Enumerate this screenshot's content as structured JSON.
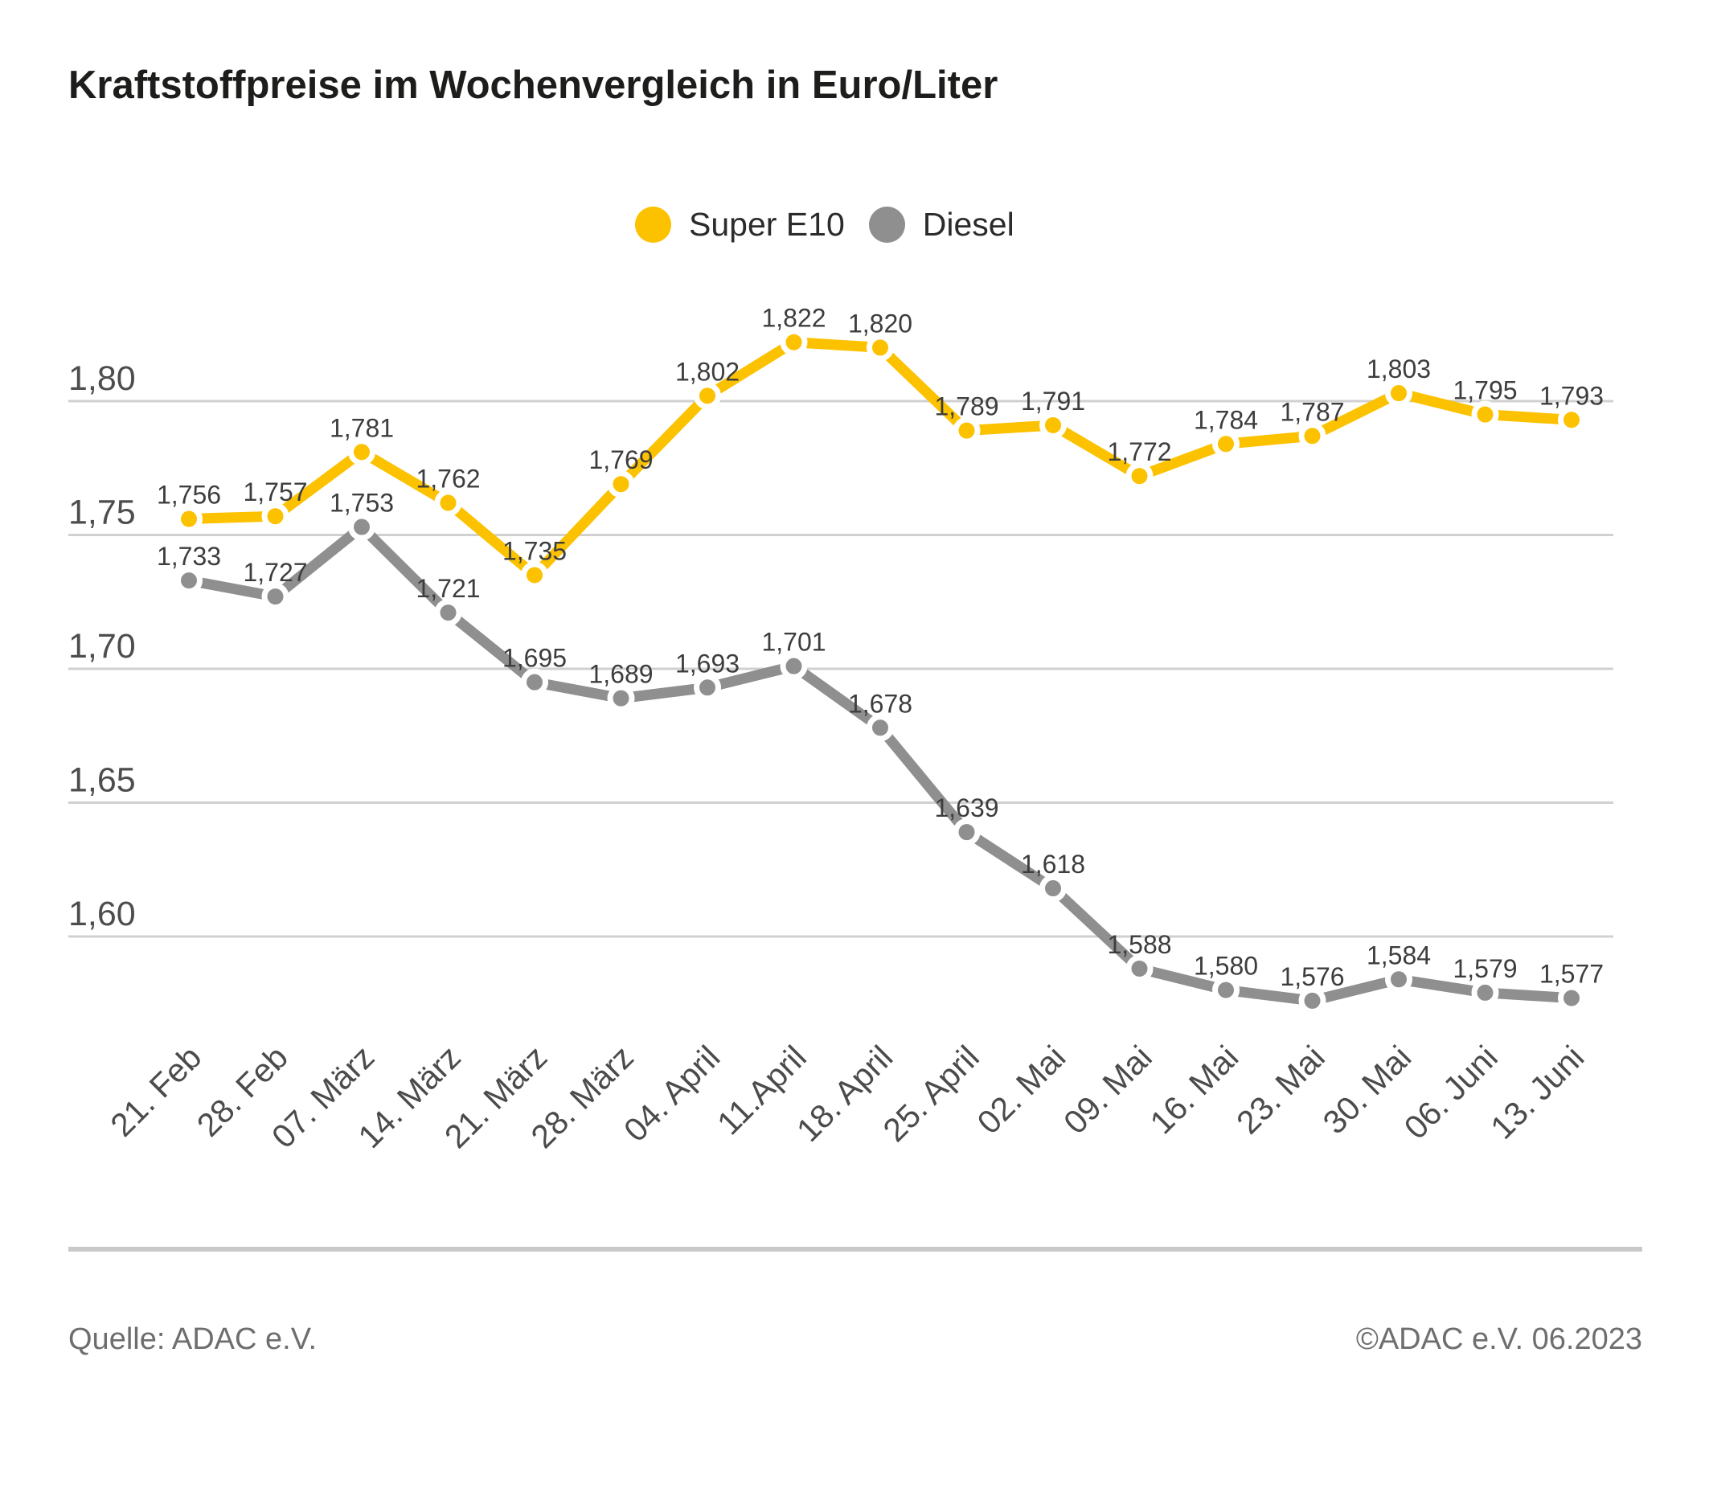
{
  "title": "Kraftstoffpreise im Wochenvergleich in Euro/Liter",
  "legend": {
    "items": [
      {
        "label": "Super E10",
        "color": "#FCC200"
      },
      {
        "label": "Diesel",
        "color": "#8F8F8F"
      }
    ]
  },
  "footer": {
    "source": "Quelle: ADAC e.V.",
    "copyright": "©ADAC e.V. 06.2023"
  },
  "colors": {
    "title_text": "#1d1d1b",
    "grid_line": "#d0d0d0",
    "y_tick_text": "#4d4d4d",
    "x_tick_text": "#4b4b4b",
    "point_label_text": "#3d3d3d",
    "footer_text": "#6e6e6e",
    "separator": "#c9c9c9",
    "background": "#ffffff"
  },
  "chart_data": {
    "type": "line",
    "title": "Kraftstoffpreise im Wochenvergleich in Euro/Liter",
    "xlabel": "",
    "ylabel": "Euro/Liter",
    "categories": [
      "21. Feb",
      "28. Feb",
      "07. März",
      "14. März",
      "21. März",
      "28. März",
      "04. April",
      "11.April",
      "18. April",
      "25. April",
      "02. Mai",
      "09. Mai",
      "16. Mai",
      "23. Mai",
      "30. Mai",
      "06. Juni",
      "13. Juni"
    ],
    "series": [
      {
        "name": "Super E10",
        "color": "#FCC200",
        "values": [
          1.756,
          1.757,
          1.781,
          1.762,
          1.735,
          1.769,
          1.802,
          1.822,
          1.82,
          1.789,
          1.791,
          1.772,
          1.784,
          1.787,
          1.803,
          1.795,
          1.793
        ]
      },
      {
        "name": "Diesel",
        "color": "#8F8F8F",
        "values": [
          1.733,
          1.727,
          1.753,
          1.721,
          1.695,
          1.689,
          1.693,
          1.701,
          1.678,
          1.639,
          1.618,
          1.588,
          1.58,
          1.576,
          1.584,
          1.579,
          1.577
        ]
      }
    ],
    "yticks": [
      1.8,
      1.75,
      1.7,
      1.65,
      1.6
    ],
    "ytick_labels": [
      "1,80",
      "1,75",
      "1,70",
      "1,65",
      "1,60"
    ],
    "ylim": [
      1.56,
      1.84
    ],
    "grid": true,
    "legend_position": "top",
    "x_label_rotation": -45,
    "decimal_separator": ","
  }
}
